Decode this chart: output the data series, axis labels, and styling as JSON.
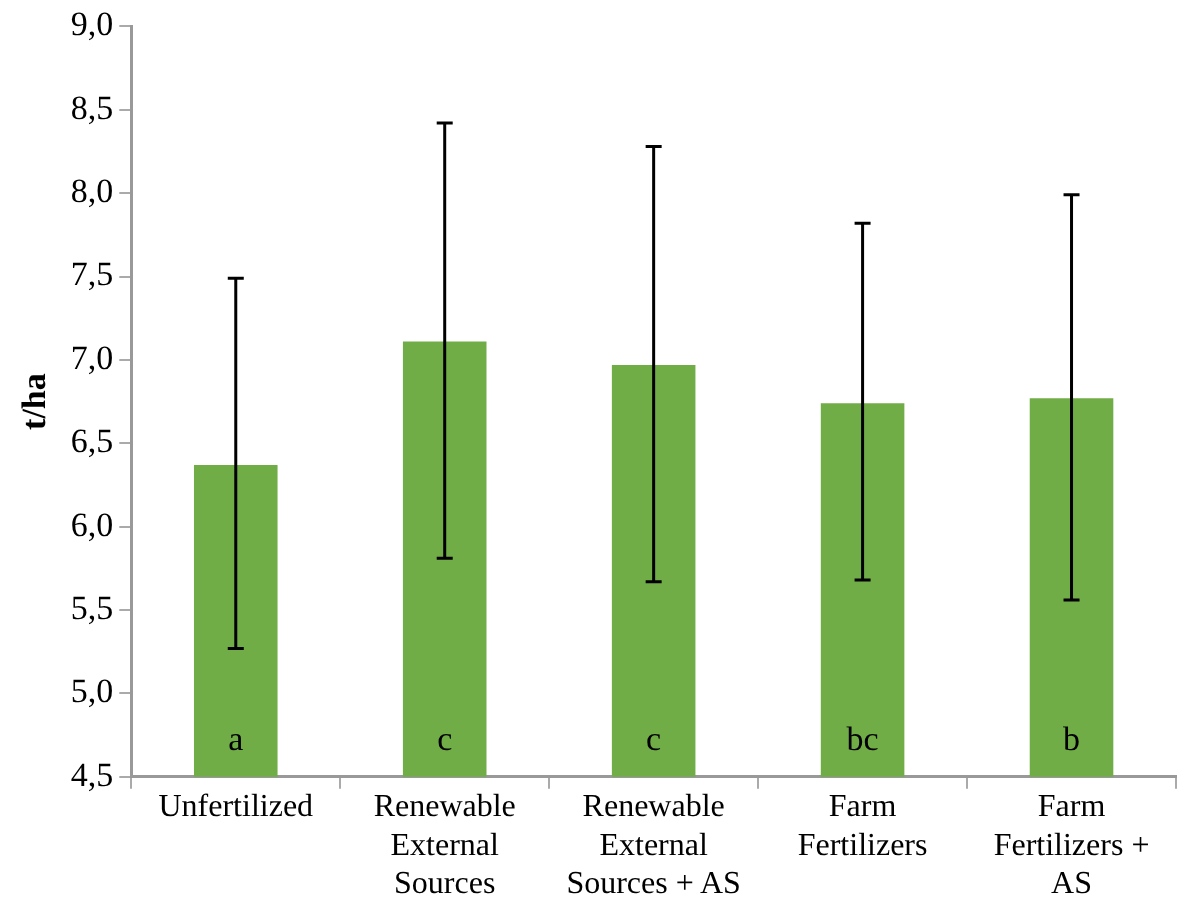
{
  "chart_data": {
    "type": "bar",
    "ylabel": "t/ha",
    "categories": [
      "Unfertilized",
      "Renewable External Sources",
      "Renewable External Sources + AS",
      "Farm Fertilizers",
      "Farm Fertilizers + AS"
    ],
    "values": [
      6.37,
      7.11,
      6.97,
      6.74,
      6.77
    ],
    "color": "#70ad47",
    "errors": [
      [
        5.27,
        7.49
      ],
      [
        5.81,
        8.42
      ],
      [
        5.67,
        8.28
      ],
      [
        5.68,
        7.82
      ],
      [
        5.56,
        7.99
      ]
    ],
    "ylim": [
      4.5,
      9.0
    ],
    "yticks": [
      {
        "value": 4.5,
        "label": "4,5"
      },
      {
        "value": 5.0,
        "label": "5,0"
      },
      {
        "value": 5.5,
        "label": "5,5"
      },
      {
        "value": 6.0,
        "label": "6,0"
      },
      {
        "value": 6.5,
        "label": "6,5"
      },
      {
        "value": 7.0,
        "label": "7,0"
      },
      {
        "value": 7.5,
        "label": "7,5"
      },
      {
        "value": 8.0,
        "label": "8,0"
      },
      {
        "value": 8.5,
        "label": "8,5"
      },
      {
        "value": 9.0,
        "label": "9,0"
      }
    ],
    "annotations": [
      "a",
      "c",
      "c",
      "bc",
      "b"
    ],
    "grid": false,
    "legend": false
  }
}
